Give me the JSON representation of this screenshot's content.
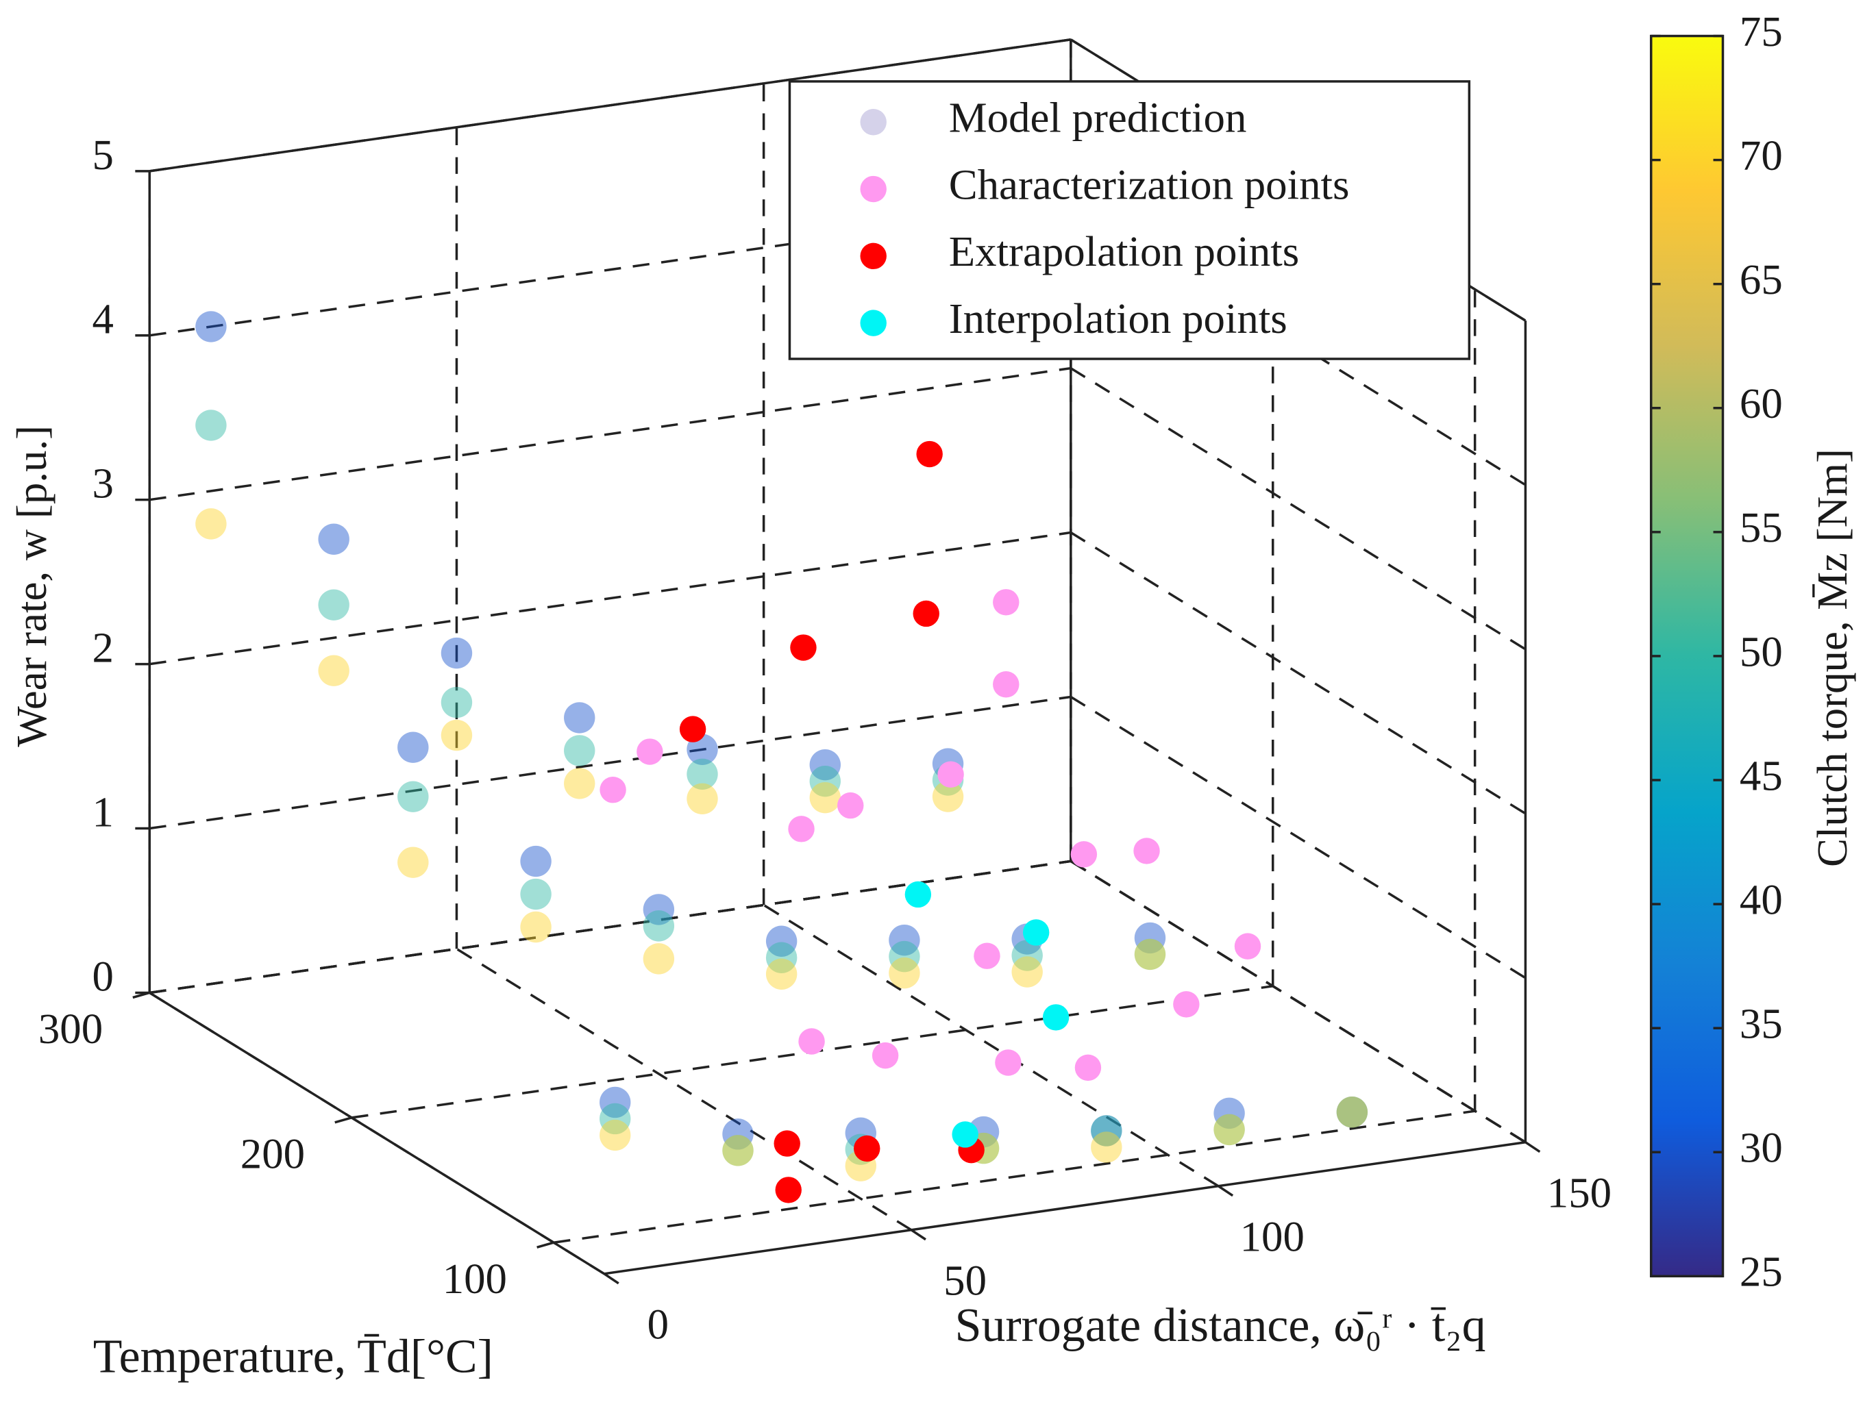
{
  "chart_data": {
    "type": "scatter3d",
    "xlabel": "Surrogate distance, ω̄₀ʳ · t̄₂q",
    "ylabel": "Temperature, T̄d[°C]",
    "zlabel": "Wear rate, w [p.u.]",
    "colorbar_label": "Clutch torque, M̄z [Nm]",
    "xlim": [
      0,
      150
    ],
    "xticks": [
      0,
      50,
      100,
      150
    ],
    "ylim": [
      75,
      300
    ],
    "yticks": [
      100,
      200,
      300
    ],
    "zlim": [
      0,
      5
    ],
    "zticks": [
      0,
      1,
      2,
      3,
      4,
      5
    ],
    "clim": [
      25,
      75
    ],
    "cticks": [
      25,
      30,
      35,
      40,
      45,
      50,
      55,
      60,
      65,
      70,
      75
    ],
    "colorscale": [
      "#352a87",
      "#0f5cdd",
      "#1481d6",
      "#06a4ca",
      "#2eb7a4",
      "#87bf77",
      "#d1bb59",
      "#fec832",
      "#f9fb0e"
    ],
    "grid": true,
    "legend": "upper right",
    "series": [
      {
        "name": "Model prediction",
        "color": "#d5d2ea",
        "x": [
          10,
          30,
          50,
          70,
          90,
          110,
          130,
          10,
          30,
          50,
          70,
          90,
          110,
          130,
          10,
          30,
          50,
          70,
          90,
          110,
          130,
          10,
          30,
          50,
          70,
          90,
          110,
          130,
          10,
          30,
          50,
          70,
          90,
          110,
          130,
          10,
          30,
          50,
          70,
          90,
          110,
          130,
          10,
          30,
          50,
          70,
          90,
          110,
          130,
          10,
          30,
          50,
          70,
          90,
          110,
          130,
          10,
          30,
          50,
          70,
          90,
          110,
          130
        ],
        "y": [
          300,
          300,
          300,
          300,
          300,
          300,
          300,
          300,
          300,
          300,
          300,
          300,
          300,
          300,
          300,
          300,
          300,
          300,
          300,
          300,
          300,
          200,
          200,
          200,
          200,
          200,
          200,
          200,
          200,
          200,
          200,
          200,
          200,
          200,
          200,
          200,
          200,
          200,
          200,
          200,
          200,
          200,
          100,
          100,
          100,
          100,
          100,
          100,
          100,
          100,
          100,
          100,
          100,
          100,
          100,
          100,
          100,
          100,
          100,
          100,
          100,
          100,
          100
        ],
        "z": [
          4.0,
          2.6,
          1.8,
          1.3,
          1.0,
          0.8,
          0.7,
          3.4,
          2.2,
          1.5,
          1.1,
          0.85,
          0.7,
          0.6,
          2.8,
          1.8,
          1.3,
          0.9,
          0.7,
          0.6,
          0.5,
          2.2,
          1.4,
          1.0,
          0.7,
          0.6,
          0.5,
          0.4,
          1.9,
          1.2,
          0.9,
          0.6,
          0.5,
          0.4,
          0.3,
          1.5,
          1.0,
          0.7,
          0.5,
          0.4,
          0.3,
          0.3,
          0.8,
          0.5,
          0.4,
          0.3,
          0.2,
          0.2,
          0.1,
          0.7,
          0.4,
          0.3,
          0.2,
          0.2,
          0.1,
          0.1,
          0.6,
          0.4,
          0.2,
          0.2,
          0.1,
          0.1,
          0.1
        ],
        "c": [
          30,
          30,
          30,
          30,
          30,
          30,
          30,
          50,
          50,
          50,
          50,
          50,
          50,
          50,
          70,
          70,
          70,
          70,
          70,
          70,
          70,
          30,
          30,
          30,
          30,
          30,
          30,
          30,
          50,
          50,
          50,
          50,
          50,
          50,
          50,
          70,
          70,
          70,
          70,
          70,
          70,
          70,
          30,
          30,
          30,
          30,
          30,
          30,
          30,
          50,
          50,
          50,
          50,
          50,
          50,
          50,
          70,
          70,
          70,
          70,
          70,
          70,
          70
        ]
      },
      {
        "name": "Characterization points",
        "color": "#ff99f0",
        "x": [
          123,
          123,
          114,
          65,
          59,
          73,
          65,
          111,
          113,
          87,
          113,
          103,
          42,
          54,
          74,
          87
        ],
        "y": [
          250,
          250,
          250,
          250,
          250,
          175,
          175,
          175,
          150,
          150,
          100,
          100,
          100,
          100,
          100,
          100
        ],
        "z": [
          2.1,
          1.6,
          1.1,
          1.5,
          1.3,
          1.7,
          1.6,
          1.2,
          1.4,
          0.9,
          1.2,
          0.9,
          1.0,
          0.85,
          0.7,
          0.6
        ]
      },
      {
        "name": "Extrapolation points",
        "color": "#ff0000",
        "x": [
          127,
          110,
          90,
          72,
          38,
          30,
          51,
          68
        ],
        "y": [
          300,
          250,
          250,
          250,
          100,
          75,
          100,
          100
        ],
        "z": [
          2.6,
          2.1,
          2.0,
          1.6,
          0.4,
          0.35,
          0.3,
          0.2
        ]
      },
      {
        "name": "Interpolation points",
        "color": "#00f5f5",
        "x": [
          84,
          95,
          90,
          67
        ],
        "y": [
          175,
          150,
          125,
          100
        ],
        "z": [
          1.1,
          1.0,
          0.7,
          0.3
        ]
      }
    ]
  }
}
